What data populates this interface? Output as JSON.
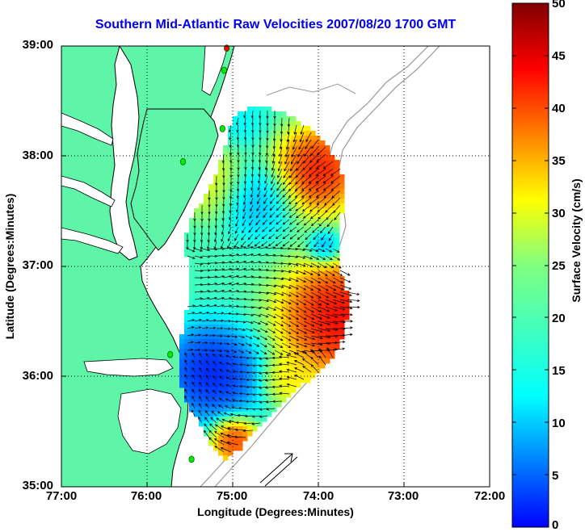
{
  "title": "Southern Mid-Atlantic Raw Velocities 2007/08/20 1700 GMT",
  "xlabel": "Longitude (Degrees:Minutes)",
  "ylabel": "Latitude (Degrees:Minutes)",
  "colorbar": {
    "label": "Surface Velocity (cm/s)",
    "range": [
      0,
      50
    ],
    "ticks": [
      "0",
      "5",
      "10",
      "15",
      "20",
      "25",
      "30",
      "35",
      "40",
      "45",
      "50"
    ],
    "colormap": "jet"
  },
  "map": {
    "lon_range": [
      -77,
      -72
    ],
    "lat_range": [
      35,
      39
    ],
    "lon_ticks": [
      "77:00",
      "76:00",
      "75:00",
      "74:00",
      "73:00",
      "72:00"
    ],
    "lat_ticks": [
      "39:00",
      "38:00",
      "37:00",
      "36:00",
      "35:00"
    ],
    "grid": "dotted",
    "land_color": "#5ef5a8",
    "coast_color": "#000000",
    "bathymetry_color": "#9a9a9a",
    "vector_color": "#000000",
    "station_color": "#00ee00",
    "station_highlight_color": "#ff0000"
  },
  "stations": [
    {
      "lon": -75.07,
      "lat": 38.98,
      "state": "highlight"
    },
    {
      "lon": -75.1,
      "lat": 38.78,
      "state": "normal"
    },
    {
      "lon": -75.12,
      "lat": 38.25,
      "state": "normal"
    },
    {
      "lon": -75.58,
      "lat": 37.95,
      "state": "normal"
    },
    {
      "lon": -75.73,
      "lat": 36.2,
      "state": "normal"
    },
    {
      "lon": -75.48,
      "lat": 35.25,
      "state": "normal"
    }
  ]
}
